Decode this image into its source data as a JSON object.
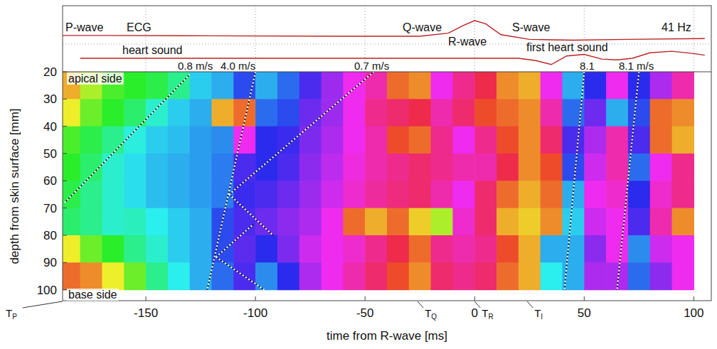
{
  "chart_data": {
    "type": "heatmap",
    "xlabel": "time from R-wave [ms]",
    "ylabel": "depth from skin surface [mm]",
    "xlim": [
      -188,
      108
    ],
    "ylim": [
      20,
      104
    ],
    "xticks": [
      -150,
      -100,
      -50,
      0,
      50,
      100
    ],
    "yticks": [
      20,
      30,
      40,
      50,
      60,
      70,
      80,
      90,
      100
    ],
    "grid": true,
    "x": [
      -185,
      -175,
      -165,
      -155,
      -145,
      -135,
      -125,
      -115,
      -105,
      -95,
      -85,
      -75,
      -65,
      -55,
      -45,
      -35,
      -25,
      -15,
      -5,
      5,
      15,
      25,
      35,
      45,
      55,
      65,
      75,
      85,
      95
    ],
    "y": [
      25,
      35,
      45,
      55,
      65,
      75,
      85,
      95
    ],
    "clim": [
      0,
      360
    ],
    "cells": [
      [
        40,
        80,
        110,
        120,
        130,
        150,
        190,
        200,
        230,
        200,
        220,
        250,
        275,
        300,
        320,
        20,
        30,
        300,
        330,
        350,
        30,
        40,
        300,
        200,
        240,
        300,
        240,
        280,
        320
      ],
      [
        60,
        100,
        120,
        140,
        170,
        190,
        200,
        40,
        20,
        220,
        230,
        260,
        275,
        300,
        330,
        340,
        350,
        320,
        340,
        10,
        20,
        30,
        320,
        220,
        260,
        200,
        230,
        20,
        30
      ],
      [
        110,
        130,
        150,
        175,
        190,
        195,
        205,
        210,
        300,
        240,
        245,
        265,
        280,
        300,
        320,
        10,
        20,
        330,
        300,
        330,
        10,
        30,
        340,
        250,
        280,
        320,
        250,
        20,
        40
      ],
      [
        120,
        140,
        170,
        185,
        195,
        200,
        205,
        215,
        250,
        240,
        250,
        270,
        285,
        305,
        320,
        330,
        340,
        330,
        320,
        320,
        350,
        30,
        10,
        230,
        290,
        320,
        220,
        300,
        330
      ],
      [
        130,
        150,
        170,
        185,
        195,
        200,
        205,
        215,
        245,
        250,
        260,
        275,
        290,
        310,
        325,
        335,
        340,
        320,
        300,
        340,
        20,
        40,
        20,
        200,
        300,
        310,
        240,
        310,
        330
      ],
      [
        140,
        150,
        170,
        165,
        180,
        190,
        200,
        230,
        250,
        260,
        270,
        280,
        300,
        20,
        40,
        20,
        50,
        80,
        310,
        340,
        40,
        50,
        30,
        190,
        290,
        300,
        250,
        320,
        30
      ],
      [
        60,
        100,
        120,
        150,
        170,
        190,
        200,
        230,
        255,
        240,
        265,
        290,
        300,
        310,
        330,
        350,
        20,
        330,
        320,
        330,
        10,
        40,
        200,
        200,
        270,
        300,
        210,
        290,
        300
      ],
      [
        20,
        30,
        60,
        100,
        150,
        180,
        200,
        220,
        250,
        210,
        240,
        280,
        300,
        320,
        340,
        10,
        30,
        340,
        330,
        340,
        20,
        40,
        180,
        200,
        280,
        280,
        220,
        270,
        300
      ]
    ],
    "ecg": {
      "x": [
        -188,
        -170,
        -120,
        -60,
        -25,
        -12,
        -5,
        0,
        5,
        12,
        25,
        45,
        70,
        105
      ],
      "values": [
        0.05,
        0.05,
        0.03,
        0,
        0,
        0.2,
        0.7,
        1,
        0.8,
        0.1,
        -0.2,
        -0.25,
        -0.2,
        -0.15
      ]
    },
    "heart_sound": {
      "x": [
        -180,
        20,
        28,
        35,
        42,
        50,
        58,
        65,
        72,
        80,
        90,
        100,
        105
      ],
      "values": [
        0,
        0,
        -0.3,
        -0.8,
        0.3,
        0.5,
        -0.1,
        -0.2,
        0,
        0.7,
        0.9,
        0.6,
        0.4
      ]
    },
    "velocity_lines": [
      {
        "label": "0.8 m/s",
        "t": [
          -187,
          -130
        ],
        "depth": [
          68,
          21
        ]
      },
      {
        "label": "4.0 m/s",
        "t": [
          -100,
          -122
        ],
        "depth": [
          20,
          100
        ]
      },
      {
        "label": "0.7 m/s",
        "t": [
          -46,
          -112
        ],
        "depth": [
          20,
          65
        ]
      },
      {
        "t": [
          -112,
          -92
        ],
        "depth": [
          65,
          80
        ]
      },
      {
        "t": [
          -118,
          -101
        ],
        "depth": [
          88,
          76
        ]
      },
      {
        "t": [
          -118,
          -96
        ],
        "depth": [
          88,
          100
        ]
      },
      {
        "label": "8.1",
        "t": [
          50,
          41
        ],
        "depth": [
          20,
          100
        ]
      },
      {
        "label": "8.1 m/s",
        "t": [
          75,
          65
        ],
        "depth": [
          20,
          100
        ]
      }
    ],
    "markers": [
      {
        "label": "TP",
        "time": -188
      },
      {
        "label": "TQ",
        "time": -26
      },
      {
        "label": "TR",
        "time": 0
      },
      {
        "label": "TI",
        "time": 24
      }
    ],
    "annotations": [
      "P-wave",
      "ECG",
      "Q-wave",
      "R-wave",
      "S-wave",
      "41 Hz",
      "heart sound",
      "first heart sound",
      "apical side",
      "base side"
    ]
  }
}
